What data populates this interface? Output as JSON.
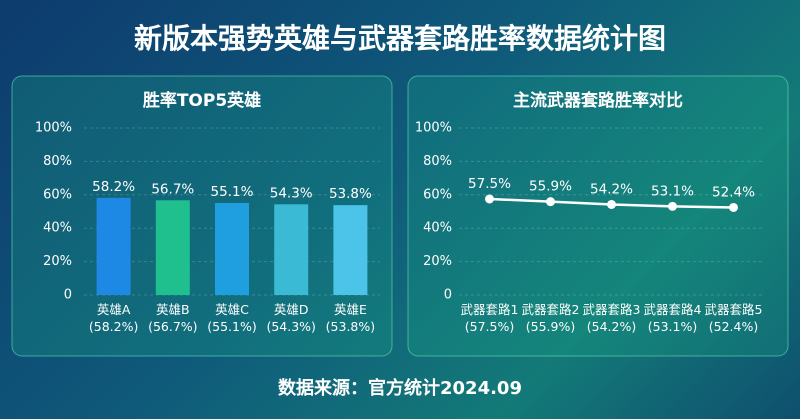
{
  "title": "新版本强势英雄与武器套路胜率数据统计图",
  "source": "数据来源：官方统计2024.09",
  "chart_data": [
    {
      "type": "bar",
      "title": "胜率TOP5英雄",
      "categories": [
        "英雄A\n(58.2%)",
        "英雄B\n(56.7%)",
        "英雄C\n(55.1%)",
        "英雄D\n(54.3%)",
        "英雄E\n(53.8%)"
      ],
      "values": [
        58.2,
        56.7,
        55.1,
        54.3,
        53.8
      ],
      "value_labels": [
        "58.2%",
        "56.7%",
        "55.1%",
        "54.3%",
        "53.8%"
      ],
      "colors": [
        "#1e88e5",
        "#1fc08e",
        "#1f9fe0",
        "#3bbad6",
        "#4cc4ea"
      ],
      "ylim": [
        0,
        100
      ],
      "yticks": [
        0,
        {
          "value": 20,
          "label": "20%"
        },
        {
          "value": 40,
          "label": "40%"
        },
        {
          "value": 60,
          "label": "60%"
        },
        {
          "value": 80,
          "label": "80%"
        },
        {
          "value": 100,
          "label": "100%"
        }
      ],
      "grid": true
    },
    {
      "type": "line",
      "title": "主流武器套路胜率对比",
      "categories": [
        "武器套路1\n(57.5%)",
        "武器套路2\n(55.9%)",
        "武器套路3\n(54.2%)",
        "武器套路4\n(53.1%)",
        "武器套路5\n(52.4%)"
      ],
      "values": [
        57.5,
        55.9,
        54.2,
        53.1,
        52.4
      ],
      "value_labels": [
        "57.5%",
        "55.9%",
        "54.2%",
        "53.1%",
        "52.4%"
      ],
      "color": "#ffffff",
      "ylim": [
        0,
        100
      ],
      "yticks": [
        0,
        {
          "value": 20,
          "label": "20%"
        },
        {
          "value": 40,
          "label": "40%"
        },
        {
          "value": 60,
          "label": "60%"
        },
        {
          "value": 80,
          "label": "80%"
        },
        {
          "value": 100,
          "label": "100%"
        }
      ],
      "grid": true
    }
  ]
}
